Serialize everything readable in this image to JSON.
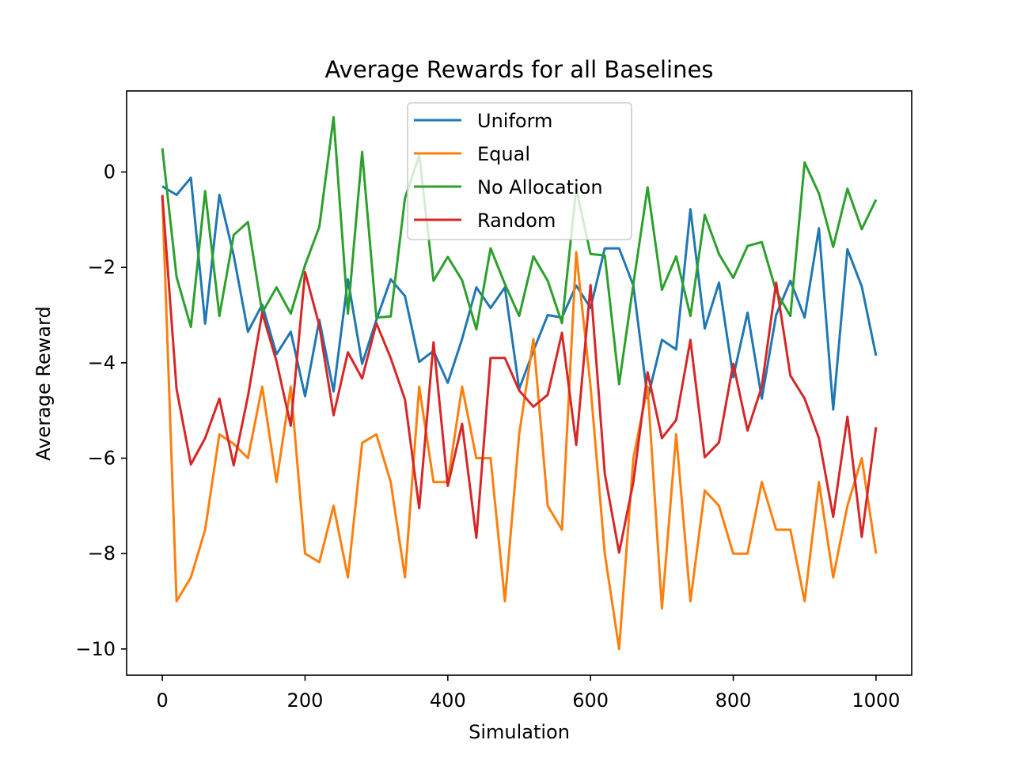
{
  "chart_data": {
    "type": "line",
    "title": "Average Rewards for all Baselines",
    "xlabel": "Simulation",
    "ylabel": "Average Reward",
    "xlim": [
      -50,
      1050
    ],
    "ylim": [
      -10.55,
      1.7
    ],
    "xticks": [
      0,
      200,
      400,
      600,
      800,
      1000
    ],
    "yticks": [
      0,
      -2,
      -4,
      -6,
      -8,
      -10
    ],
    "xtick_labels": [
      "0",
      "200",
      "400",
      "600",
      "800",
      "1000"
    ],
    "ytick_labels": [
      "0",
      "−2",
      "−4",
      "−6",
      "−8",
      "−10"
    ],
    "grid": false,
    "legend_position": "top-center",
    "x": [
      0,
      20,
      40,
      60,
      80,
      100,
      120,
      140,
      160,
      180,
      200,
      220,
      240,
      260,
      280,
      300,
      320,
      340,
      360,
      380,
      400,
      420,
      440,
      460,
      480,
      500,
      520,
      540,
      560,
      580,
      600,
      620,
      640,
      660,
      680,
      700,
      720,
      740,
      760,
      780,
      800,
      820,
      840,
      860,
      880,
      900,
      920,
      940,
      960,
      980,
      1000
    ],
    "series": [
      {
        "name": "Uniform",
        "color": "#1f77b4",
        "values": [
          -0.3,
          -0.48,
          -0.12,
          -3.18,
          -0.48,
          -1.75,
          -3.35,
          -2.78,
          -3.82,
          -3.35,
          -4.7,
          -3.1,
          -4.6,
          -2.25,
          -4.02,
          -3.1,
          -2.25,
          -2.6,
          -3.98,
          -3.75,
          -4.42,
          -3.5,
          -2.42,
          -2.85,
          -2.42,
          -4.55,
          -3.75,
          -3.0,
          -3.05,
          -2.38,
          -2.85,
          -1.6,
          -1.6,
          -2.38,
          -4.75,
          -3.52,
          -3.72,
          -0.78,
          -3.28,
          -2.32,
          -4.3,
          -2.95,
          -4.75,
          -3.0,
          -2.28,
          -3.05,
          -1.18,
          -4.98,
          -1.62,
          -2.4,
          -3.85
        ]
      },
      {
        "name": "Equal",
        "color": "#ff7f0e",
        "values": [
          -0.5,
          -9.0,
          -8.5,
          -7.5,
          -5.5,
          -5.7,
          -6.0,
          -4.5,
          -6.5,
          -4.5,
          -8.0,
          -8.18,
          -7.0,
          -8.5,
          -5.68,
          -5.5,
          -6.5,
          -8.5,
          -4.5,
          -6.5,
          -6.5,
          -4.5,
          -6.0,
          -6.0,
          -9.0,
          -5.5,
          -3.5,
          -7.0,
          -7.5,
          -1.68,
          -4.5,
          -8.0,
          -10.0,
          -6.0,
          -4.5,
          -9.15,
          -5.5,
          -9.0,
          -6.68,
          -7.0,
          -8.0,
          -8.0,
          -6.5,
          -7.5,
          -7.5,
          -9.0,
          -6.5,
          -8.5,
          -7.0,
          -6.0,
          -8.0
        ]
      },
      {
        "name": "No Allocation",
        "color": "#2ca02c",
        "values": [
          0.5,
          -2.2,
          -3.25,
          -0.4,
          -3.02,
          -1.32,
          -1.05,
          -2.95,
          -2.42,
          -2.97,
          -1.95,
          -1.15,
          1.15,
          -2.97,
          0.42,
          -3.05,
          -3.03,
          -0.55,
          0.35,
          -2.28,
          -1.78,
          -2.27,
          -3.3,
          -1.6,
          -2.35,
          -3.02,
          -1.77,
          -2.28,
          -3.17,
          -0.35,
          -1.72,
          -1.75,
          -4.45,
          -2.35,
          -0.32,
          -2.47,
          -1.77,
          -3.02,
          -0.9,
          -1.72,
          -2.22,
          -1.55,
          -1.47,
          -2.5,
          -3.02,
          0.2,
          -0.45,
          -1.57,
          -0.35,
          -1.2,
          -0.58
        ]
      },
      {
        "name": "Random",
        "color": "#d62728",
        "values": [
          -0.48,
          -4.55,
          -6.13,
          -5.58,
          -4.75,
          -6.15,
          -4.7,
          -2.95,
          -3.97,
          -5.32,
          -2.1,
          -3.22,
          -5.1,
          -3.78,
          -4.33,
          -3.17,
          -3.9,
          -4.77,
          -7.05,
          -3.57,
          -6.58,
          -5.28,
          -7.67,
          -3.9,
          -3.9,
          -4.58,
          -4.92,
          -4.67,
          -3.37,
          -5.72,
          -2.37,
          -6.33,
          -7.98,
          -6.5,
          -4.2,
          -5.58,
          -5.2,
          -3.52,
          -5.98,
          -5.67,
          -4.02,
          -5.42,
          -4.5,
          -2.32,
          -4.27,
          -4.75,
          -5.58,
          -7.23,
          -5.13,
          -7.65,
          -5.35
        ]
      }
    ]
  }
}
